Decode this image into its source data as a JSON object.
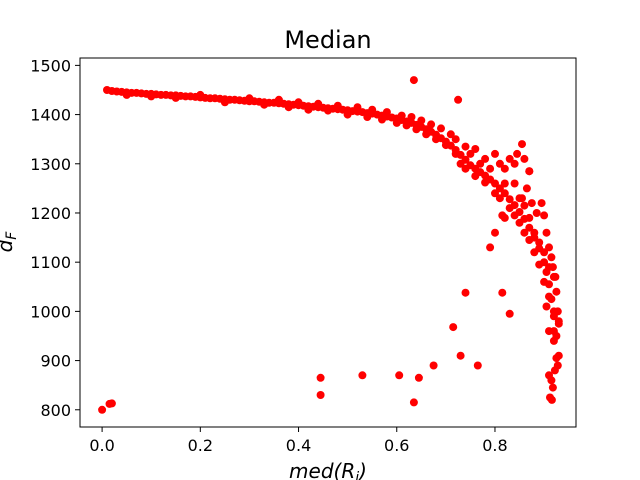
{
  "chart_data": {
    "type": "scatter",
    "title": "Median",
    "xlabel": "med(R_i)",
    "xlabel_main": "med(R",
    "xlabel_sub": "i",
    "xlabel_close": ")",
    "ylabel": "d_F",
    "ylabel_main": "d",
    "ylabel_sub": "F",
    "xlim": [
      -0.045,
      0.965
    ],
    "ylim": [
      765,
      1515
    ],
    "xticks": [
      0.0,
      0.2,
      0.4,
      0.6,
      0.8
    ],
    "xtick_labels": [
      "0.0",
      "0.2",
      "0.4",
      "0.6",
      "0.8"
    ],
    "yticks": [
      800,
      900,
      1000,
      1100,
      1200,
      1300,
      1400,
      1500
    ],
    "ytick_labels": [
      "800",
      "900",
      "1000",
      "1100",
      "1200",
      "1300",
      "1400",
      "1500"
    ],
    "grid": false,
    "marker_color": "#ff0000",
    "series": [
      {
        "points": [
          [
            0.01,
            1450
          ],
          [
            0.02,
            1448
          ],
          [
            0.03,
            1447
          ],
          [
            0.04,
            1446
          ],
          [
            0.05,
            1445
          ],
          [
            0.06,
            1444
          ],
          [
            0.07,
            1444
          ],
          [
            0.08,
            1443
          ],
          [
            0.09,
            1442
          ],
          [
            0.1,
            1442
          ],
          [
            0.11,
            1441
          ],
          [
            0.12,
            1440
          ],
          [
            0.13,
            1440
          ],
          [
            0.14,
            1439
          ],
          [
            0.15,
            1439
          ],
          [
            0.16,
            1438
          ],
          [
            0.17,
            1437
          ],
          [
            0.18,
            1437
          ],
          [
            0.19,
            1436
          ],
          [
            0.2,
            1435
          ],
          [
            0.21,
            1434
          ],
          [
            0.22,
            1433
          ],
          [
            0.23,
            1433
          ],
          [
            0.24,
            1432
          ],
          [
            0.25,
            1431
          ],
          [
            0.26,
            1430
          ],
          [
            0.27,
            1430
          ],
          [
            0.28,
            1429
          ],
          [
            0.29,
            1428
          ],
          [
            0.3,
            1427
          ],
          [
            0.31,
            1427
          ],
          [
            0.32,
            1426
          ],
          [
            0.33,
            1425
          ],
          [
            0.34,
            1424
          ],
          [
            0.35,
            1424
          ],
          [
            0.36,
            1423
          ],
          [
            0.37,
            1422
          ],
          [
            0.38,
            1421
          ],
          [
            0.39,
            1420
          ],
          [
            0.4,
            1419
          ],
          [
            0.41,
            1418
          ],
          [
            0.42,
            1417
          ],
          [
            0.43,
            1416
          ],
          [
            0.44,
            1415
          ],
          [
            0.45,
            1414
          ],
          [
            0.46,
            1413
          ],
          [
            0.47,
            1412
          ],
          [
            0.48,
            1411
          ],
          [
            0.49,
            1410
          ],
          [
            0.5,
            1409
          ],
          [
            0.51,
            1407
          ],
          [
            0.52,
            1406
          ],
          [
            0.53,
            1405
          ],
          [
            0.54,
            1403
          ],
          [
            0.55,
            1402
          ],
          [
            0.56,
            1400
          ],
          [
            0.57,
            1398
          ],
          [
            0.58,
            1396
          ],
          [
            0.59,
            1394
          ],
          [
            0.6,
            1392
          ],
          [
            0.61,
            1389
          ],
          [
            0.62,
            1386
          ],
          [
            0.63,
            1383
          ],
          [
            0.64,
            1379
          ],
          [
            0.65,
            1375
          ],
          [
            0.66,
            1370
          ],
          [
            0.67,
            1365
          ],
          [
            0.68,
            1359
          ],
          [
            0.69,
            1352
          ],
          [
            0.7,
            1345
          ],
          [
            0.71,
            1337
          ],
          [
            0.72,
            1328
          ],
          [
            0.73,
            1318
          ],
          [
            0.74,
            1308
          ],
          [
            0.75,
            1297
          ],
          [
            0.76,
            1290
          ],
          [
            0.77,
            1283
          ],
          [
            0.78,
            1276
          ],
          [
            0.79,
            1268
          ],
          [
            0.8,
            1260
          ],
          [
            0.81,
            1250
          ],
          [
            0.82,
            1240
          ],
          [
            0.83,
            1228
          ],
          [
            0.84,
            1216
          ],
          [
            0.85,
            1202
          ],
          [
            0.86,
            1188
          ],
          [
            0.87,
            1170
          ],
          [
            0.88,
            1150
          ],
          [
            0.89,
            1128
          ],
          [
            0.9,
            1100
          ],
          [
            0.905,
            1080
          ],
          [
            0.91,
            1055
          ],
          [
            0.915,
            1025
          ],
          [
            0.92,
            990
          ],
          [
            0.925,
            950
          ],
          [
            0.93,
            910
          ],
          [
            0.05,
            1440
          ],
          [
            0.1,
            1437
          ],
          [
            0.15,
            1434
          ],
          [
            0.2,
            1440
          ],
          [
            0.25,
            1425
          ],
          [
            0.3,
            1433
          ],
          [
            0.33,
            1420
          ],
          [
            0.36,
            1430
          ],
          [
            0.38,
            1415
          ],
          [
            0.4,
            1425
          ],
          [
            0.42,
            1410
          ],
          [
            0.44,
            1422
          ],
          [
            0.46,
            1408
          ],
          [
            0.48,
            1418
          ],
          [
            0.5,
            1400
          ],
          [
            0.52,
            1415
          ],
          [
            0.54,
            1395
          ],
          [
            0.55,
            1410
          ],
          [
            0.57,
            1390
          ],
          [
            0.58,
            1405
          ],
          [
            0.6,
            1383
          ],
          [
            0.61,
            1398
          ],
          [
            0.62,
            1378
          ],
          [
            0.63,
            1395
          ],
          [
            0.64,
            1370
          ],
          [
            0.65,
            1388
          ],
          [
            0.66,
            1360
          ],
          [
            0.67,
            1380
          ],
          [
            0.68,
            1350
          ],
          [
            0.69,
            1372
          ],
          [
            0.7,
            1338
          ],
          [
            0.71,
            1360
          ],
          [
            0.72,
            1320
          ],
          [
            0.72,
            1350
          ],
          [
            0.73,
            1300
          ],
          [
            0.74,
            1335
          ],
          [
            0.74,
            1290
          ],
          [
            0.75,
            1320
          ],
          [
            0.76,
            1275
          ],
          [
            0.76,
            1330
          ],
          [
            0.77,
            1300
          ],
          [
            0.78,
            1310
          ],
          [
            0.78,
            1262
          ],
          [
            0.79,
            1290
          ],
          [
            0.8,
            1320
          ],
          [
            0.8,
            1240
          ],
          [
            0.81,
            1300
          ],
          [
            0.81,
            1230
          ],
          [
            0.82,
            1290
          ],
          [
            0.82,
            1260
          ],
          [
            0.83,
            1310
          ],
          [
            0.83,
            1210
          ],
          [
            0.84,
            1260
          ],
          [
            0.84,
            1195
          ],
          [
            0.85,
            1230
          ],
          [
            0.85,
            1180
          ],
          [
            0.86,
            1215
          ],
          [
            0.86,
            1160
          ],
          [
            0.87,
            1190
          ],
          [
            0.87,
            1145
          ],
          [
            0.88,
            1160
          ],
          [
            0.88,
            1120
          ],
          [
            0.89,
            1140
          ],
          [
            0.89,
            1095
          ],
          [
            0.9,
            1120
          ],
          [
            0.9,
            1060
          ],
          [
            0.91,
            1090
          ],
          [
            0.91,
            1030
          ],
          [
            0.92,
            1070
          ],
          [
            0.92,
            1000
          ],
          [
            0.92,
            960
          ],
          [
            0.93,
            980
          ],
          [
            0.635,
            1470
          ],
          [
            0.725,
            1430
          ],
          [
            0.87,
            1285
          ],
          [
            0.84,
            1300
          ],
          [
            0.845,
            1320
          ],
          [
            0.855,
            1230
          ],
          [
            0.865,
            1250
          ],
          [
            0.875,
            1220
          ],
          [
            0.885,
            1200
          ],
          [
            0.895,
            1220
          ],
          [
            0.9,
            1195
          ],
          [
            0.905,
            1160
          ],
          [
            0.91,
            1130
          ],
          [
            0.915,
            1110
          ],
          [
            0.918,
            1090
          ],
          [
            0.923,
            1070
          ],
          [
            0.925,
            1040
          ],
          [
            0.928,
            1000
          ],
          [
            0.93,
            975
          ],
          [
            0.92,
            940
          ],
          [
            0.91,
            960
          ],
          [
            0.905,
            1010
          ],
          [
            0.91,
            870
          ],
          [
            0.915,
            860
          ],
          [
            0.918,
            845
          ],
          [
            0.912,
            825
          ],
          [
            0.916,
            820
          ],
          [
            0.925,
            905
          ],
          [
            0.928,
            890
          ],
          [
            0.922,
            880
          ],
          [
            0.0,
            800
          ],
          [
            0.015,
            812
          ],
          [
            0.02,
            813
          ],
          [
            0.445,
            865
          ],
          [
            0.445,
            830
          ],
          [
            0.53,
            870
          ],
          [
            0.605,
            870
          ],
          [
            0.635,
            815
          ],
          [
            0.645,
            865
          ],
          [
            0.675,
            890
          ],
          [
            0.715,
            968
          ],
          [
            0.73,
            910
          ],
          [
            0.74,
            1038
          ],
          [
            0.765,
            890
          ],
          [
            0.79,
            1130
          ],
          [
            0.8,
            1160
          ],
          [
            0.815,
            1038
          ],
          [
            0.83,
            995
          ],
          [
            0.815,
            1195
          ],
          [
            0.82,
            1190
          ],
          [
            0.87,
            1285
          ],
          [
            0.855,
            1340
          ],
          [
            0.86,
            1310
          ]
        ]
      }
    ]
  }
}
